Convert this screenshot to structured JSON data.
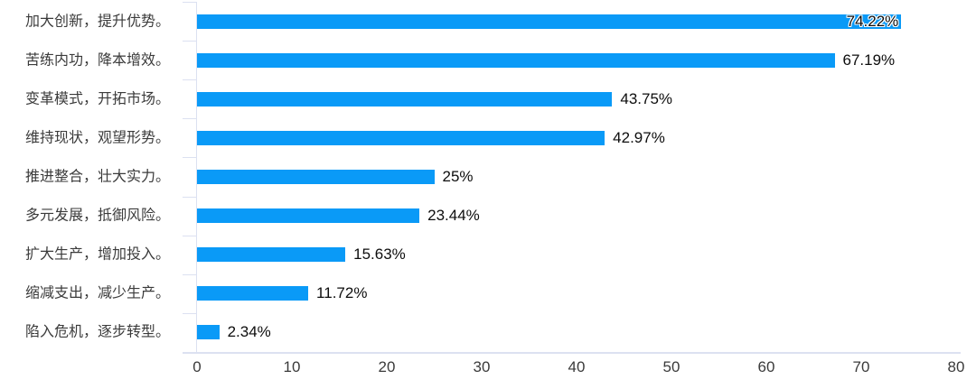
{
  "chart_data": {
    "type": "bar",
    "orientation": "horizontal",
    "title": "",
    "xlabel": "",
    "ylabel": "",
    "categories": [
      "加大创新，提升优势。",
      "苦练内功，降本增效。",
      "变革模式，开拓市场。",
      "维持现状，观望形势。",
      "推进整合，壮大实力。",
      "多元发展，抵御风险。",
      "扩大生产，增加投入。",
      "缩减支出，减少生产。",
      "陷入危机，逐步转型。"
    ],
    "values": [
      74.22,
      67.19,
      43.75,
      42.97,
      25,
      23.44,
      15.63,
      11.72,
      2.34
    ],
    "value_labels": [
      "74.22%",
      "67.19%",
      "43.75%",
      "42.97%",
      "25%",
      "23.44%",
      "15.63%",
      "11.72%",
      "2.34%"
    ],
    "value_label_inside": [
      true,
      false,
      false,
      false,
      false,
      false,
      false,
      false,
      false
    ],
    "x_ticks": [
      0,
      10,
      20,
      30,
      40,
      50,
      60,
      70,
      80
    ],
    "xlim": [
      0,
      80
    ],
    "grid": "off",
    "legend": "none",
    "bar_color": "#0a9af7",
    "axis_line_color": "#dce1f1",
    "category_label_color": "#3b3b3b",
    "value_label_color": "#0d0d0d",
    "tick_label_color": "#3b3b3b"
  }
}
